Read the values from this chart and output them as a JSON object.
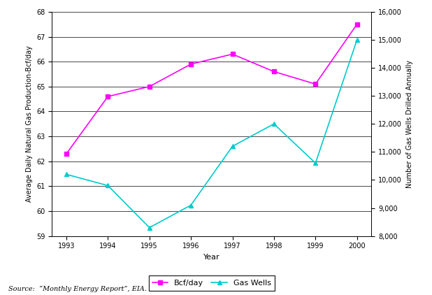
{
  "years": [
    1993,
    1994,
    1995,
    1996,
    1997,
    1998,
    1999,
    2000
  ],
  "bcf_day": [
    62.3,
    64.6,
    65.0,
    65.9,
    66.3,
    65.6,
    65.1,
    67.5
  ],
  "gas_wells": [
    10200,
    9800,
    8300,
    9100,
    11200,
    12000,
    10600,
    15000
  ],
  "left_ylim": [
    59,
    68
  ],
  "left_yticks": [
    59,
    60,
    61,
    62,
    63,
    64,
    65,
    66,
    67,
    68
  ],
  "right_ylim": [
    8000,
    16000
  ],
  "right_yticks": [
    8000,
    9000,
    10000,
    11000,
    12000,
    13000,
    14000,
    15000,
    16000
  ],
  "bcf_color": "#FF00FF",
  "wells_color": "#00CCCC",
  "xlabel": "Year",
  "ylabel_left": "Average Daily Natural Gas Production-Bcf/day",
  "ylabel_right": "Number of Gas Wells Drilled Annually",
  "legend_labels": [
    "Bcf/day",
    "Gas Wells"
  ],
  "source_text": "Source:  “Monthly Energy Report”, EIA.",
  "marker": "s",
  "wells_marker": "^",
  "linewidth": 1.2,
  "markersize": 4
}
